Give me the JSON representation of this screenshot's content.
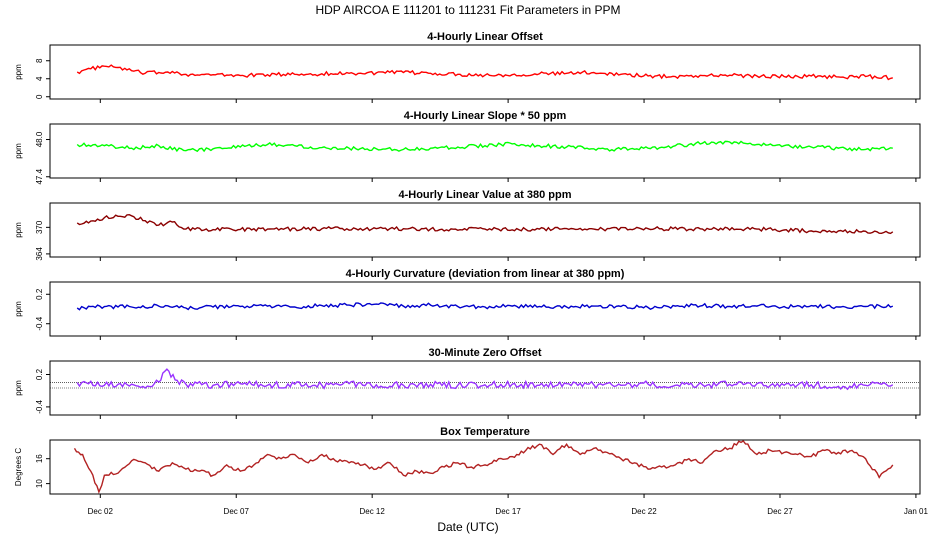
{
  "header": {
    "title": "HDP   AIRCOA E   111201 to 111231   Fit Parameters in PPM",
    "xlabel": "Date (UTC)",
    "x_ticks": [
      "Dec 02",
      "Dec 07",
      "Dec 12",
      "Dec 17",
      "Dec 22",
      "Dec 27",
      "Jan 01"
    ]
  },
  "chart_data": [
    {
      "type": "line",
      "title": "4-Hourly Linear Offset",
      "ylabel": "ppm",
      "color": "#ff0000",
      "yticks": [
        "0",
        "4",
        "8"
      ],
      "ylim": [
        -0.5,
        11.5
      ],
      "x": [
        1.0,
        1.5,
        2.0,
        2.5,
        3.0,
        3.5,
        4.0,
        4.5,
        5.0,
        5.5,
        6.0,
        7.0,
        8.0,
        9.0,
        10.0,
        11.0,
        12.0,
        13.0,
        14.0,
        15.0,
        16.0,
        17.0,
        18.0,
        19.0,
        20.0,
        21.0,
        22.0,
        23.0,
        24.0,
        25.0,
        26.0,
        27.0,
        28.0,
        29.0,
        30.0,
        31.0
      ],
      "values": [
        5.5,
        6.2,
        6.8,
        6.5,
        5.8,
        5.2,
        5.4,
        5.6,
        5.0,
        4.8,
        4.9,
        4.7,
        4.9,
        5.0,
        5.1,
        5.2,
        5.3,
        5.4,
        5.2,
        5.0,
        4.8,
        4.9,
        5.1,
        5.2,
        5.4,
        5.0,
        4.6,
        4.5,
        4.7,
        4.8,
        4.6,
        4.5,
        4.6,
        4.4,
        4.5,
        4.2
      ]
    },
    {
      "type": "line",
      "title": "4-Hourly Linear Slope * 50 ppm",
      "ylabel": "ppm",
      "color": "#00ff00",
      "yticks": [
        "47.4",
        "48.0"
      ],
      "ylim": [
        47.38,
        48.25
      ],
      "x": [
        1.0,
        2.0,
        3.0,
        4.0,
        5.0,
        6.0,
        7.0,
        8.0,
        9.0,
        10.0,
        11.0,
        12.0,
        13.0,
        14.0,
        15.0,
        16.0,
        17.0,
        18.0,
        19.0,
        20.0,
        21.0,
        22.0,
        23.0,
        24.0,
        25.0,
        26.0,
        27.0,
        28.0,
        29.0,
        30.0,
        31.0
      ],
      "values": [
        47.92,
        47.9,
        47.86,
        47.9,
        47.82,
        47.85,
        47.88,
        47.92,
        47.9,
        47.87,
        47.86,
        47.85,
        47.84,
        47.86,
        47.88,
        47.9,
        47.93,
        47.9,
        47.88,
        47.85,
        47.84,
        47.86,
        47.9,
        47.94,
        47.96,
        47.92,
        47.9,
        47.88,
        47.86,
        47.84,
        47.86
      ]
    },
    {
      "type": "line",
      "title": "4-Hourly Linear Value at 380 ppm",
      "ylabel": "ppm",
      "color": "#8b0000",
      "yticks": [
        "364",
        "370"
      ],
      "ylim": [
        363.3,
        375.5
      ],
      "x": [
        1.0,
        1.5,
        2.0,
        2.5,
        3.0,
        3.5,
        4.0,
        4.5,
        5.0,
        6.0,
        8.0,
        10.0,
        12.0,
        14.0,
        16.0,
        18.0,
        20.0,
        22.0,
        24.0,
        26.0,
        27.0,
        28.0,
        29.0,
        30.0,
        31.0
      ],
      "values": [
        371.0,
        371.4,
        372.2,
        372.5,
        372.6,
        371.5,
        370.5,
        371.2,
        369.6,
        369.5,
        369.6,
        369.7,
        369.7,
        369.6,
        369.6,
        369.6,
        369.6,
        369.7,
        369.6,
        369.6,
        369.4,
        369.2,
        369.2,
        369.1,
        369.0
      ]
    },
    {
      "type": "line",
      "title": "4-Hourly Curvature (deviation from linear at 380 ppm)",
      "ylabel": "ppm",
      "color": "#0000cc",
      "yticks": [
        "-0.4",
        "0.2"
      ],
      "ylim": [
        -0.65,
        0.45
      ],
      "x": [
        1.0,
        2.0,
        3.0,
        4.0,
        5.0,
        6.0,
        7.0,
        8.0,
        9.0,
        10.0,
        11.0,
        12.0,
        13.0,
        14.0,
        15.0,
        16.0,
        17.0,
        18.0,
        19.0,
        20.0,
        21.0,
        22.0,
        23.0,
        24.0,
        25.0,
        26.0,
        27.0,
        28.0,
        29.0,
        30.0,
        31.0
      ],
      "values": [
        -0.08,
        -0.05,
        -0.06,
        -0.04,
        -0.08,
        -0.06,
        -0.05,
        -0.04,
        -0.06,
        -0.03,
        -0.02,
        0.0,
        -0.04,
        -0.02,
        -0.05,
        -0.06,
        -0.04,
        -0.05,
        -0.06,
        -0.04,
        -0.05,
        -0.07,
        -0.04,
        -0.03,
        -0.05,
        -0.04,
        -0.05,
        -0.03,
        -0.06,
        -0.05,
        -0.04
      ]
    },
    {
      "type": "line",
      "title": "30-Minute Zero Offset",
      "ylabel": "ppm",
      "color": "#9933ff",
      "yticks": [
        "-0.4",
        "0.2"
      ],
      "ylim": [
        -0.55,
        0.45
      ],
      "reference_lines": [
        0.05,
        -0.05
      ],
      "x": [
        1.0,
        2.0,
        3.0,
        3.5,
        4.0,
        4.3,
        4.6,
        5.0,
        6.0,
        7.0,
        8.0,
        9.0,
        10.0,
        11.0,
        12.0,
        13.0,
        14.0,
        15.0,
        16.0,
        17.0,
        18.0,
        19.0,
        20.0,
        21.0,
        22.0,
        23.0,
        24.0,
        25.0,
        26.0,
        27.0,
        28.0,
        29.0,
        30.0,
        31.0
      ],
      "values": [
        0.05,
        0.0,
        0.02,
        -0.05,
        0.06,
        0.3,
        0.1,
        0.02,
        0.0,
        0.03,
        0.0,
        0.02,
        0.0,
        0.03,
        0.01,
        0.0,
        0.02,
        0.0,
        0.01,
        0.02,
        0.0,
        0.03,
        0.01,
        0.0,
        0.02,
        0.0,
        0.01,
        0.02,
        0.03,
        0.0,
        0.01,
        -0.02,
        0.0,
        0.01
      ]
    },
    {
      "type": "line",
      "title": "Box Temperature",
      "ylabel": "Degrees C",
      "color": "#b22222",
      "yticks": [
        "10",
        "16"
      ],
      "ylim": [
        7.5,
        20.5
      ],
      "x": [
        0.9,
        1.2,
        1.5,
        1.8,
        2.0,
        2.5,
        3.0,
        3.5,
        4.0,
        4.5,
        5.0,
        5.5,
        6.0,
        6.5,
        7.0,
        7.5,
        8.0,
        8.5,
        9.0,
        9.5,
        10.0,
        10.5,
        11.0,
        11.5,
        12.0,
        12.5,
        13.0,
        13.5,
        14.0,
        14.5,
        15.0,
        15.5,
        16.0,
        16.5,
        17.0,
        17.5,
        18.0,
        18.5,
        19.0,
        19.5,
        20.0,
        20.5,
        21.0,
        21.5,
        22.0,
        22.5,
        23.0,
        23.5,
        24.0,
        24.5,
        25.0,
        25.5,
        26.0,
        26.5,
        27.0,
        27.5,
        28.0,
        28.5,
        29.0,
        29.5,
        30.0,
        30.5,
        31.0
      ],
      "values": [
        18.5,
        17.0,
        13.0,
        8.0,
        12.0,
        12.5,
        15.5,
        15.0,
        13.0,
        15.0,
        13.5,
        13.0,
        12.0,
        14.5,
        13.0,
        14.5,
        17.0,
        16.0,
        17.0,
        15.0,
        17.0,
        15.5,
        15.0,
        14.5,
        13.5,
        15.0,
        12.0,
        13.0,
        12.5,
        14.0,
        15.0,
        14.0,
        14.5,
        16.0,
        16.5,
        18.0,
        19.5,
        17.0,
        19.5,
        17.0,
        18.5,
        17.5,
        16.0,
        15.0,
        13.5,
        14.0,
        14.5,
        16.0,
        15.0,
        18.0,
        18.5,
        20.5,
        17.0,
        18.0,
        17.5,
        17.0,
        16.5,
        18.0,
        17.5,
        18.0,
        16.0,
        11.5,
        14.5
      ]
    }
  ]
}
